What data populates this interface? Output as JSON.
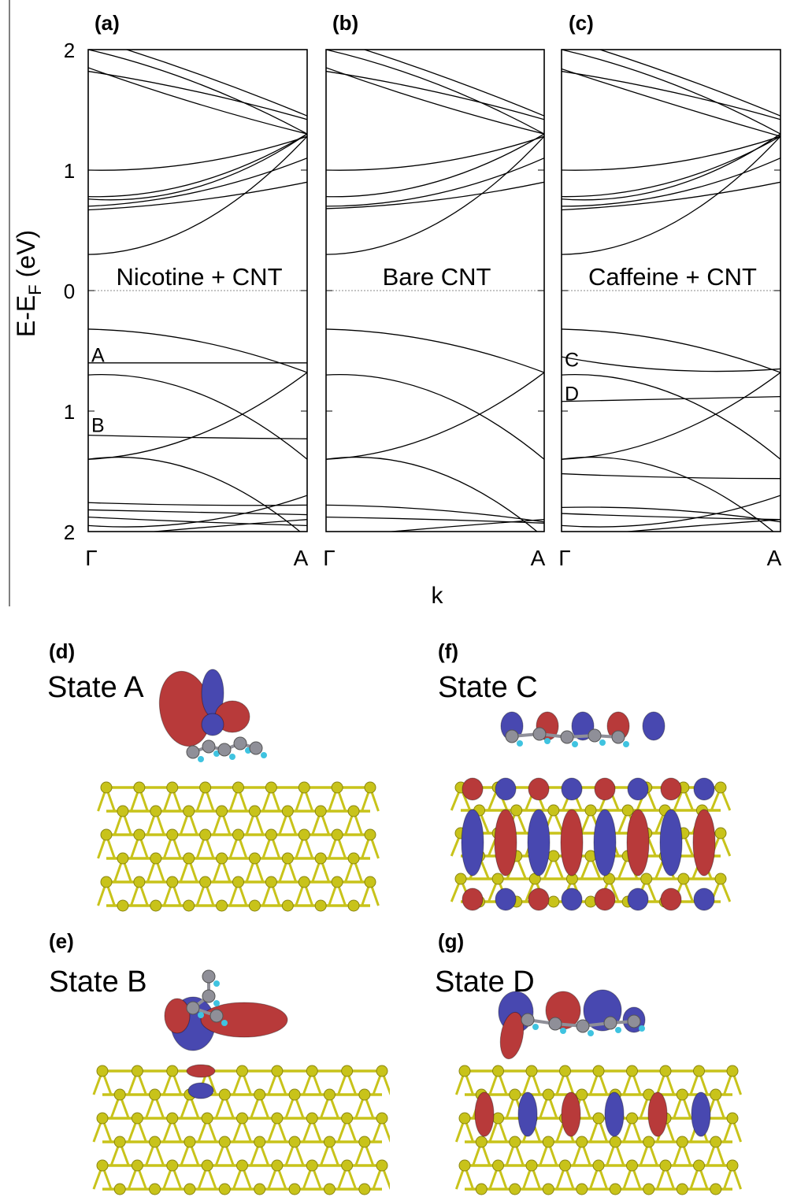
{
  "chart_data": {
    "type": "line",
    "ylabel": "E-E",
    "ylabel_sub": "F",
    "ylabel_unit": " (eV)",
    "xlabel": "k",
    "ylim": [
      -2,
      2
    ],
    "yticks": [
      2,
      1,
      0,
      1,
      2
    ],
    "ytick_values": [
      2,
      1,
      0,
      -1,
      -2
    ],
    "xticks": [
      "Γ",
      "A"
    ],
    "fermi_level": 0,
    "panels": [
      {
        "id": "a",
        "letter": "(a)",
        "label": "Nicotine + CNT",
        "state_markers": [
          {
            "text": "A",
            "energy": -0.52
          },
          {
            "text": "B",
            "energy": -1.1
          }
        ],
        "bands": [
          [
            1.82,
            1.65,
            1.42
          ],
          [
            1.85,
            1.55,
            1.3
          ],
          [
            2.0,
            1.72,
            1.3
          ],
          [
            2.1,
            1.8,
            1.45
          ],
          [
            1.0,
            1.06,
            1.28
          ],
          [
            0.78,
            0.9,
            1.3
          ],
          [
            0.76,
            0.86,
            1.3
          ],
          [
            0.7,
            0.82,
            1.1
          ],
          [
            0.67,
            0.75,
            0.9
          ],
          [
            0.3,
            0.55,
            1.28
          ],
          [
            -0.32,
            -0.42,
            -0.68
          ],
          [
            -0.6,
            -0.6,
            -0.6
          ],
          [
            -0.7,
            -0.85,
            -1.4
          ],
          [
            -1.4,
            -1.2,
            -0.68
          ],
          [
            -1.2,
            -1.22,
            -1.23
          ],
          [
            -1.4,
            -1.5,
            -2.05
          ],
          [
            -1.76,
            -1.78,
            -1.78
          ],
          [
            -1.82,
            -1.84,
            -1.86
          ],
          [
            -1.88,
            -1.92,
            -1.95
          ],
          [
            -1.95,
            -1.92,
            -1.7
          ],
          [
            -2.05,
            -1.97,
            -1.9
          ]
        ]
      },
      {
        "id": "b",
        "letter": "(b)",
        "label": "Bare CNT",
        "state_markers": [],
        "bands": [
          [
            1.82,
            1.65,
            1.42
          ],
          [
            1.85,
            1.55,
            1.3
          ],
          [
            2.0,
            1.72,
            1.3
          ],
          [
            2.1,
            1.8,
            1.45
          ],
          [
            1.0,
            1.06,
            1.28
          ],
          [
            0.78,
            0.9,
            1.3
          ],
          [
            0.7,
            0.8,
            1.1
          ],
          [
            0.68,
            0.75,
            0.9
          ],
          [
            0.3,
            0.55,
            1.28
          ],
          [
            -0.32,
            -0.42,
            -0.68
          ],
          [
            -0.7,
            -0.85,
            -1.4
          ],
          [
            -1.4,
            -1.2,
            -0.68
          ],
          [
            -1.4,
            -1.5,
            -2.05
          ],
          [
            -1.78,
            -1.82,
            -1.92
          ],
          [
            -1.88,
            -1.9,
            -1.93
          ],
          [
            -2.05,
            -1.97,
            -1.9
          ]
        ]
      },
      {
        "id": "c",
        "letter": "(c)",
        "label": "Caffeine + CNT",
        "state_markers": [
          {
            "text": "C",
            "energy": -0.56
          },
          {
            "text": "D",
            "energy": -0.84
          }
        ],
        "bands": [
          [
            1.82,
            1.65,
            1.42
          ],
          [
            1.84,
            1.55,
            1.28
          ],
          [
            2.0,
            1.72,
            1.3
          ],
          [
            2.1,
            1.8,
            1.45
          ],
          [
            1.0,
            1.06,
            1.28
          ],
          [
            0.78,
            0.9,
            1.28
          ],
          [
            0.76,
            0.86,
            1.3
          ],
          [
            0.7,
            0.8,
            1.1
          ],
          [
            0.67,
            0.75,
            0.9
          ],
          [
            0.3,
            0.55,
            1.28
          ],
          [
            -0.32,
            -0.42,
            -0.68
          ],
          [
            -0.55,
            -0.66,
            -0.65
          ],
          [
            -0.7,
            -0.85,
            -1.4
          ],
          [
            -1.4,
            -1.2,
            -0.68
          ],
          [
            -0.92,
            -0.9,
            -0.88
          ],
          [
            -1.4,
            -1.5,
            -2.05
          ],
          [
            -1.52,
            -1.55,
            -1.56
          ],
          [
            -1.8,
            -1.82,
            -1.92
          ],
          [
            -1.85,
            -1.88,
            -1.9
          ],
          [
            -1.95,
            -1.92,
            -1.7
          ],
          [
            -2.05,
            -1.97,
            -1.9
          ]
        ]
      }
    ]
  },
  "orbitals": [
    {
      "letter": "(d)",
      "title": "State A"
    },
    {
      "letter": "(f)",
      "title": "State C"
    },
    {
      "letter": "(e)",
      "title": "State B"
    },
    {
      "letter": "(g)",
      "title": "State D"
    }
  ],
  "colors": {
    "carbon": "#c8c31a",
    "lobe_red": "#b83a3a",
    "lobe_blue": "#4848b0",
    "atom_grey": "#8f8f98",
    "atom_h": "#3fc3e0"
  }
}
